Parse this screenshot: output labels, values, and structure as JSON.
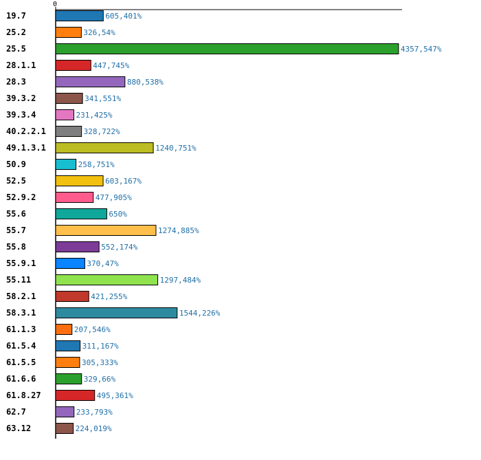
{
  "chart_data": {
    "type": "bar",
    "orientation": "horizontal",
    "title": "",
    "xlabel": "",
    "ylabel": "",
    "x_ticks": [
      "0"
    ],
    "xlim": [
      0,
      4500
    ],
    "grid": false,
    "categories": [
      "19.7",
      "25.2",
      "25.5",
      "28.1.1",
      "28.3",
      "39.3.2",
      "39.3.4",
      "40.2.2.1",
      "49.1.3.1",
      "50.9",
      "52.5",
      "52.9.2",
      "55.6",
      "55.7",
      "55.8",
      "55.9.1",
      "55.11",
      "58.2.1",
      "58.3.1",
      "61.1.3",
      "61.5.4",
      "61.5.5",
      "61.6.6",
      "61.8.27",
      "62.7",
      "63.12"
    ],
    "values": [
      605.401,
      326.54,
      4357.547,
      447.745,
      880.538,
      341.551,
      231.425,
      328.722,
      1240.751,
      258.751,
      603.167,
      477.905,
      650,
      1274.885,
      552.174,
      370.47,
      1297.484,
      421.255,
      1544.226,
      207.546,
      311.167,
      305.333,
      329.66,
      495.361,
      233.793,
      224.019
    ],
    "value_labels": [
      "605,401%",
      "326,54%",
      "4357,547%",
      "447,745%",
      "880,538%",
      "341,551%",
      "231,425%",
      "328,722%",
      "1240,751%",
      "258,751%",
      "603,167%",
      "477,905%",
      "650%",
      "1274,885%",
      "552,174%",
      "370,47%",
      "1297,484%",
      "421,255%",
      "1544,226%",
      "207,546%",
      "311,167%",
      "305,333%",
      "329,66%",
      "495,361%",
      "233,793%",
      "224,019%"
    ],
    "colors": [
      "#1f77b4",
      "#ff7f0e",
      "#2ca02c",
      "#d62728",
      "#9467bd",
      "#8c564b",
      "#e377c2",
      "#7f7f7f",
      "#bcbd22",
      "#17becf",
      "#f2c00f",
      "#ff5c8d",
      "#0fa89b",
      "#ffbf4a",
      "#7d3c98",
      "#0a84ff",
      "#8fe34f",
      "#c0392b",
      "#2e8b9f",
      "#ff6f0f",
      "#1f77b4",
      "#ff7f0e",
      "#2ca02c",
      "#d62728",
      "#9467bd",
      "#8c564b"
    ]
  }
}
